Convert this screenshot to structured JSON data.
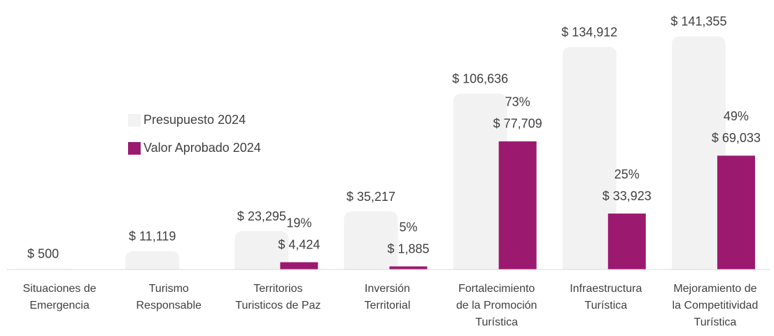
{
  "chart_data": {
    "type": "bar",
    "categories": [
      [
        "Situaciones de",
        "Emergencia"
      ],
      [
        "Turismo",
        "Responsable"
      ],
      [
        "Territorios",
        "Turisticos de Paz"
      ],
      [
        "Inversión",
        "Territorial"
      ],
      [
        "Fortalecimiento",
        "de la Promoción",
        "Turística"
      ],
      [
        "Infraestructura",
        "Turística"
      ],
      [
        "Mejoramiento de",
        "la Competitividad",
        "Turística"
      ]
    ],
    "series": [
      {
        "name": "Presupuesto 2024",
        "color": "#f2f2f2",
        "values": [
          500,
          11119,
          23295,
          35217,
          106636,
          134912,
          141355
        ],
        "value_labels": [
          "$ 500",
          "$ 11,119",
          "$ 23,295",
          "$ 35,217",
          "$ 106,636",
          "$ 134,912",
          "$ 141,355"
        ]
      },
      {
        "name": "Valor Aprobado 2024",
        "color": "#9b1a6f",
        "values": [
          null,
          null,
          4424,
          1885,
          77709,
          33923,
          69033
        ],
        "value_labels": [
          null,
          null,
          "$ 4,424",
          "$ 1,885",
          "$ 77,709",
          "$ 33,923",
          "$ 69,033"
        ],
        "percent_labels": [
          null,
          null,
          "19%",
          "5%",
          "73%",
          "25%",
          "49%"
        ]
      }
    ],
    "ylim": [
      0,
      145000
    ],
    "legend": "left"
  }
}
